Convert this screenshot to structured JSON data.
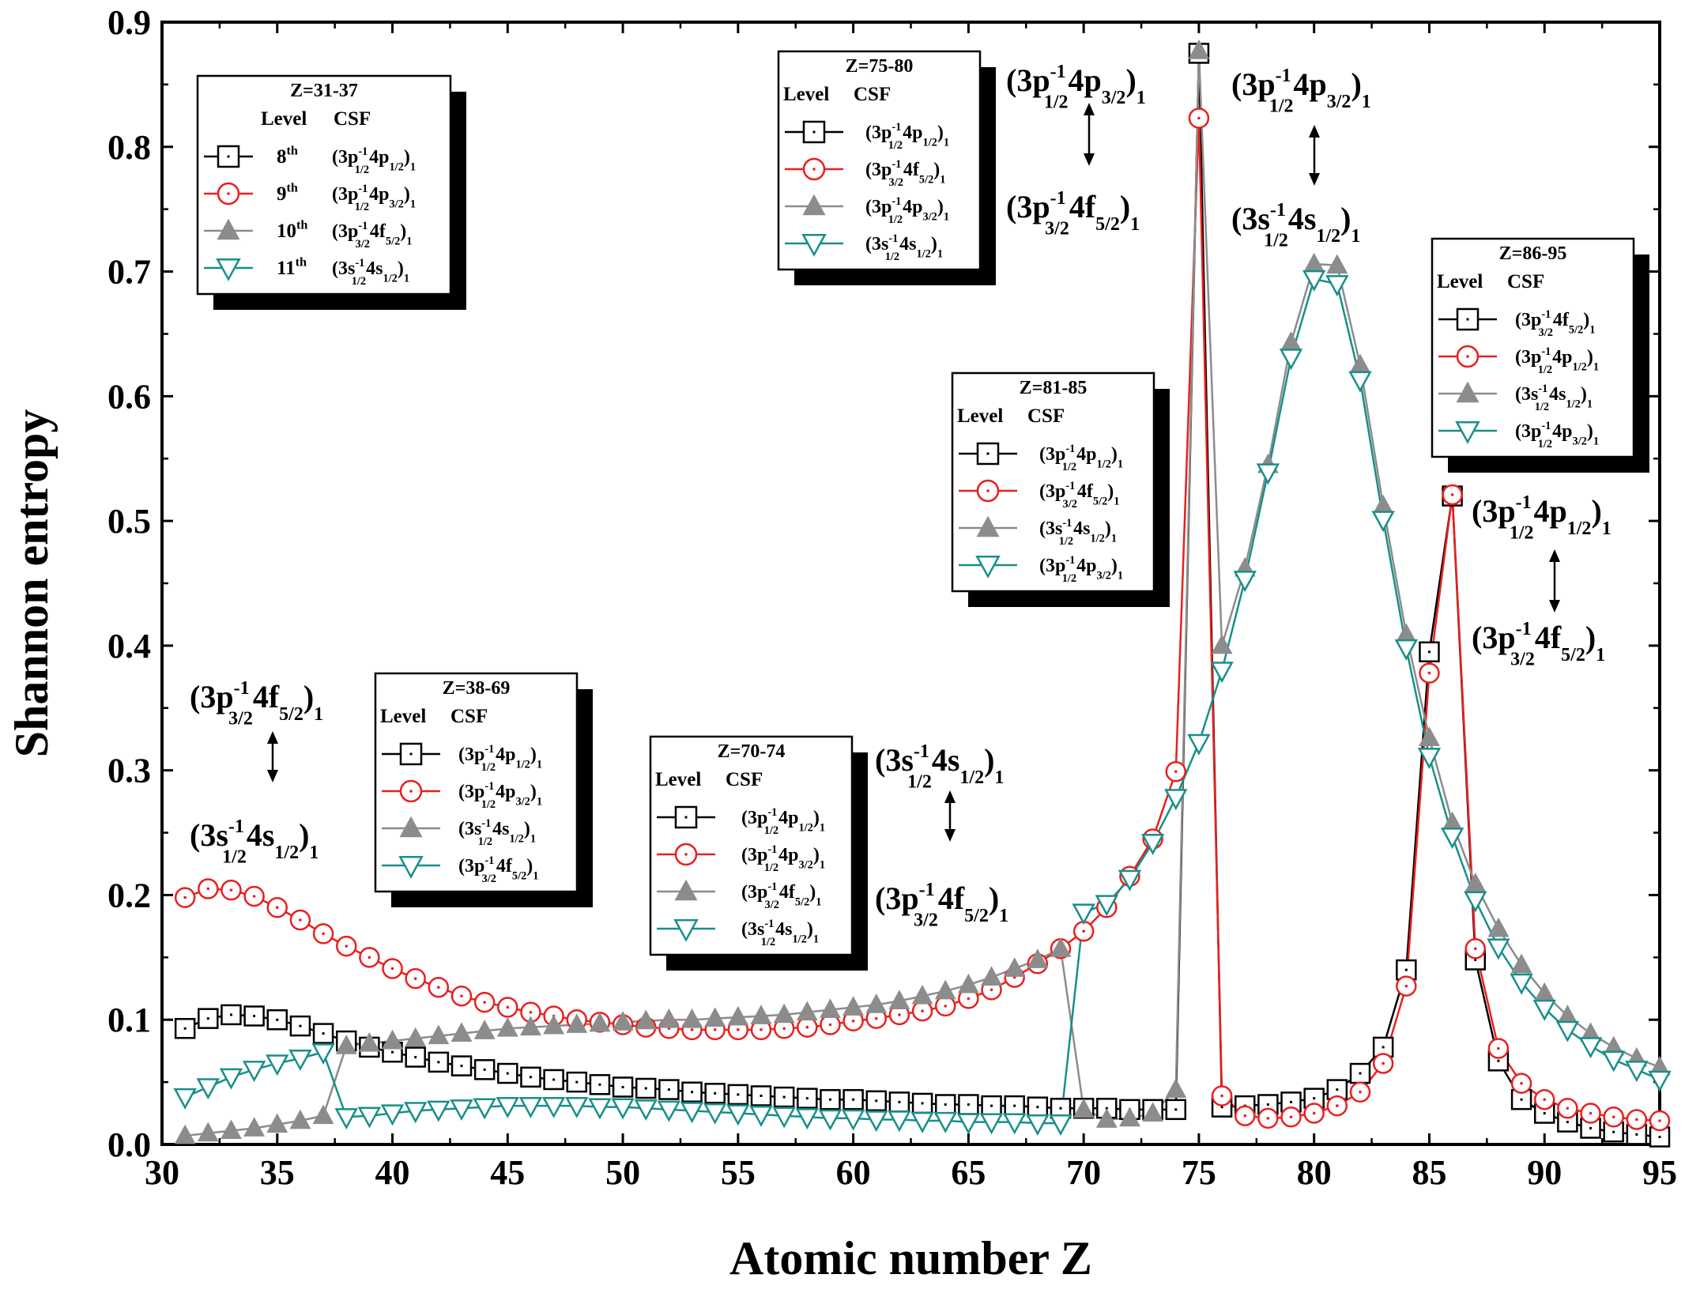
{
  "chart_data": {
    "type": "line",
    "title": "",
    "xlabel": "Atomic number Z",
    "ylabel": "Shannon entropy",
    "xlim": [
      30,
      95
    ],
    "ylim": [
      0,
      0.9
    ],
    "xticks": [
      30,
      35,
      40,
      45,
      50,
      55,
      60,
      65,
      70,
      75,
      80,
      85,
      90,
      95
    ],
    "xtick_labels": [
      "30",
      "35",
      "40",
      "45",
      "50",
      "55",
      "60",
      "65",
      "70",
      "75",
      "80",
      "85",
      "90",
      "95"
    ],
    "yticks": [
      0,
      0.1,
      0.2,
      0.3,
      0.4,
      0.5,
      0.6,
      0.7,
      0.8,
      0.9
    ],
    "ytick_labels": [
      "0.0",
      "0.1",
      "0.2",
      "0.3",
      "0.4",
      "0.5",
      "0.6",
      "0.7",
      "0.8",
      "0.9"
    ],
    "grid": false,
    "x": [
      31,
      32,
      33,
      34,
      35,
      36,
      37,
      38,
      39,
      40,
      41,
      42,
      43,
      44,
      45,
      46,
      47,
      48,
      49,
      50,
      51,
      52,
      53,
      54,
      55,
      56,
      57,
      58,
      59,
      60,
      61,
      62,
      63,
      64,
      65,
      66,
      67,
      68,
      69,
      70,
      71,
      72,
      73,
      74,
      75,
      76,
      77,
      78,
      79,
      80,
      81,
      82,
      83,
      84,
      85,
      86,
      87,
      88,
      89,
      90,
      91,
      92,
      93,
      94,
      95
    ],
    "series": [
      {
        "name": "8th level",
        "marker": "square",
        "color": "#000000",
        "values": [
          0.093,
          0.101,
          0.104,
          0.103,
          0.1,
          0.095,
          0.089,
          0.083,
          0.078,
          0.074,
          0.07,
          0.066,
          0.063,
          0.06,
          0.057,
          0.054,
          0.052,
          0.05,
          0.048,
          0.046,
          0.045,
          0.044,
          0.042,
          0.041,
          0.04,
          0.039,
          0.038,
          0.037,
          0.036,
          0.036,
          0.035,
          0.034,
          0.033,
          0.032,
          0.032,
          0.031,
          0.031,
          0.03,
          0.029,
          0.029,
          0.029,
          0.028,
          0.028,
          0.028,
          0.875,
          0.03,
          0.031,
          0.032,
          0.034,
          0.037,
          0.044,
          0.057,
          0.078,
          0.14,
          0.395,
          0.52,
          0.148,
          0.067,
          0.036,
          0.025,
          0.018,
          0.013,
          0.01,
          0.008,
          0.006
        ]
      },
      {
        "name": "9th level",
        "marker": "circle",
        "color": "#e8201f",
        "values": [
          0.198,
          0.205,
          0.204,
          0.199,
          0.19,
          0.18,
          0.169,
          0.159,
          0.15,
          0.141,
          0.133,
          0.126,
          0.119,
          0.114,
          0.11,
          0.106,
          0.103,
          0.1,
          0.098,
          0.096,
          0.094,
          0.093,
          0.092,
          0.092,
          0.092,
          0.092,
          0.093,
          0.094,
          0.096,
          0.099,
          0.101,
          0.104,
          0.107,
          0.111,
          0.117,
          0.124,
          0.134,
          0.145,
          0.157,
          0.171,
          0.19,
          0.215,
          0.245,
          0.299,
          0.823,
          0.039,
          0.023,
          0.021,
          0.022,
          0.025,
          0.031,
          0.042,
          0.065,
          0.127,
          0.378,
          0.521,
          0.157,
          0.077,
          0.049,
          0.036,
          0.029,
          0.025,
          0.022,
          0.02,
          0.019
        ]
      },
      {
        "name": "10th level",
        "marker": "triangle-up",
        "color": "#8c8c8c",
        "values": [
          0.007,
          0.009,
          0.011,
          0.013,
          0.016,
          0.019,
          0.023,
          0.079,
          0.081,
          0.083,
          0.085,
          0.087,
          0.089,
          0.091,
          0.093,
          0.094,
          0.095,
          0.096,
          0.097,
          0.098,
          0.099,
          0.1,
          0.1,
          0.101,
          0.102,
          0.103,
          0.104,
          0.106,
          0.108,
          0.11,
          0.112,
          0.115,
          0.119,
          0.123,
          0.128,
          0.134,
          0.141,
          0.148,
          0.157,
          0.028,
          0.02,
          0.021,
          0.025,
          0.044,
          0.877,
          0.4,
          0.462,
          0.545,
          0.643,
          0.706,
          0.705,
          0.625,
          0.512,
          0.409,
          0.326,
          0.258,
          0.209,
          0.173,
          0.144,
          0.121,
          0.103,
          0.089,
          0.078,
          0.069,
          0.062
        ]
      },
      {
        "name": "11th level",
        "marker": "triangle-down",
        "color": "#188f8a",
        "values": [
          0.038,
          0.046,
          0.054,
          0.06,
          0.065,
          0.069,
          0.074,
          0.022,
          0.023,
          0.025,
          0.027,
          0.028,
          0.029,
          0.03,
          0.031,
          0.031,
          0.031,
          0.031,
          0.03,
          0.03,
          0.029,
          0.028,
          0.027,
          0.026,
          0.025,
          0.024,
          0.023,
          0.022,
          0.021,
          0.021,
          0.02,
          0.02,
          0.019,
          0.019,
          0.018,
          0.018,
          0.018,
          0.017,
          0.017,
          0.186,
          0.193,
          0.213,
          0.242,
          0.278,
          0.322,
          0.38,
          0.453,
          0.539,
          0.631,
          0.694,
          0.69,
          0.613,
          0.501,
          0.398,
          0.311,
          0.247,
          0.196,
          0.158,
          0.13,
          0.109,
          0.092,
          0.079,
          0.068,
          0.06,
          0.052
        ]
      }
    ],
    "legends": [
      {
        "title": "Z=31-37",
        "level_header": "Level",
        "csf_header": "CSF",
        "levels": [
          "8th",
          "9th",
          "10th",
          "11th"
        ],
        "csf": [
          "(3p1/2-1 4p1/2)1",
          "(3p1/2-1 4p3/2)1",
          "(3p3/2-1 4f5/2)1",
          "(3s1/2-1 4s1/2)1"
        ]
      },
      {
        "title": "Z=38-69",
        "level_header": "Level",
        "csf_header": "CSF",
        "csf": [
          "(3p1/2-1 4p1/2)1",
          "(3p1/2-1 4p3/2)1",
          "(3s1/2-1 4s1/2)1",
          "(3p3/2-1 4f5/2)1"
        ]
      },
      {
        "title": "Z=70-74",
        "level_header": "Level",
        "csf_header": "CSF",
        "csf": [
          "(3p1/2-1 4p1/2)1",
          "(3p1/2-1 4p3/2)1",
          "(3p3/2-1 4f5/2)1",
          "(3s1/2-1 4s1/2)1"
        ]
      },
      {
        "title": "Z=75-80",
        "level_header": "Level",
        "csf_header": "CSF",
        "csf": [
          "(3p1/2-1 4p1/2)1",
          "(3p3/2-1 4f5/2)1",
          "(3p1/2-1 4p3/2)1",
          "(3s1/2-1 4s1/2)1"
        ]
      },
      {
        "title": "Z=81-85",
        "level_header": "Level",
        "csf_header": "CSF",
        "csf": [
          "(3p1/2-1 4p1/2)1",
          "(3p3/2-1 4f5/2)1",
          "(3s1/2-1 4s1/2)1",
          "(3p1/2-1 4p3/2)1"
        ]
      },
      {
        "title": "Z=86-95",
        "level_header": "Level",
        "csf_header": "CSF",
        "csf": [
          "(3p3/2-1 4f5/2)1",
          "(3p1/2-1 4p1/2)1",
          "(3s1/2-1 4s1/2)1",
          "(3p1/2-1 4p3/2)1"
        ]
      }
    ],
    "annotations": [
      {
        "top": "(3p3/2-1 4f5/2)1",
        "bottom": "(3s1/2-1 4s1/2)1"
      },
      {
        "top": "(3s1/2-1 4s1/2)1",
        "bottom": "(3p3/2-1 4f5/2)1"
      },
      {
        "top": "(3p1/2-1 4p3/2)1",
        "bottom": "(3p3/2-1 4f5/2)1"
      },
      {
        "top": "(3p1/2-1 4p3/2)1",
        "bottom": "(3s1/2-1 4s1/2)1"
      },
      {
        "top": "(3p1/2-1 4p1/2)1",
        "bottom": "(3p3/2-1 4f5/2)1"
      }
    ]
  }
}
